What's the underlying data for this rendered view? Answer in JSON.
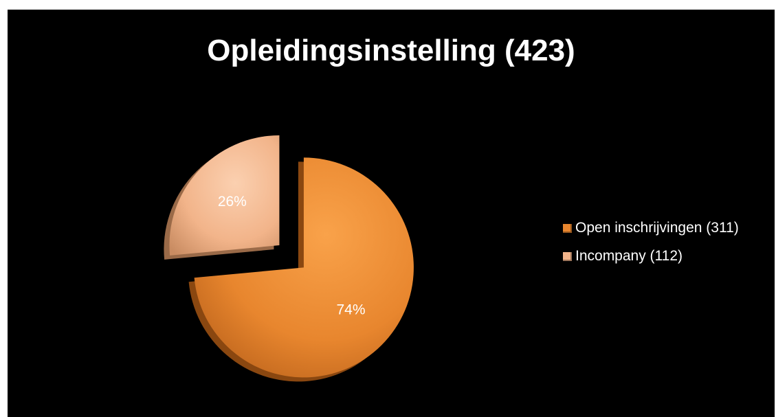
{
  "chart_data": {
    "type": "pie",
    "title": "Opleidingsinstelling (423)",
    "slices": [
      {
        "label": "Open inschrijvingen (311)",
        "value": 311,
        "percent_label": "74%",
        "color": "#e8862e"
      },
      {
        "label": "Incompany (112)",
        "value": 112,
        "percent_label": "26%",
        "color": "#f2b48a"
      }
    ],
    "legend_placement": "right",
    "exploded": true,
    "style": "3d-bevel"
  }
}
